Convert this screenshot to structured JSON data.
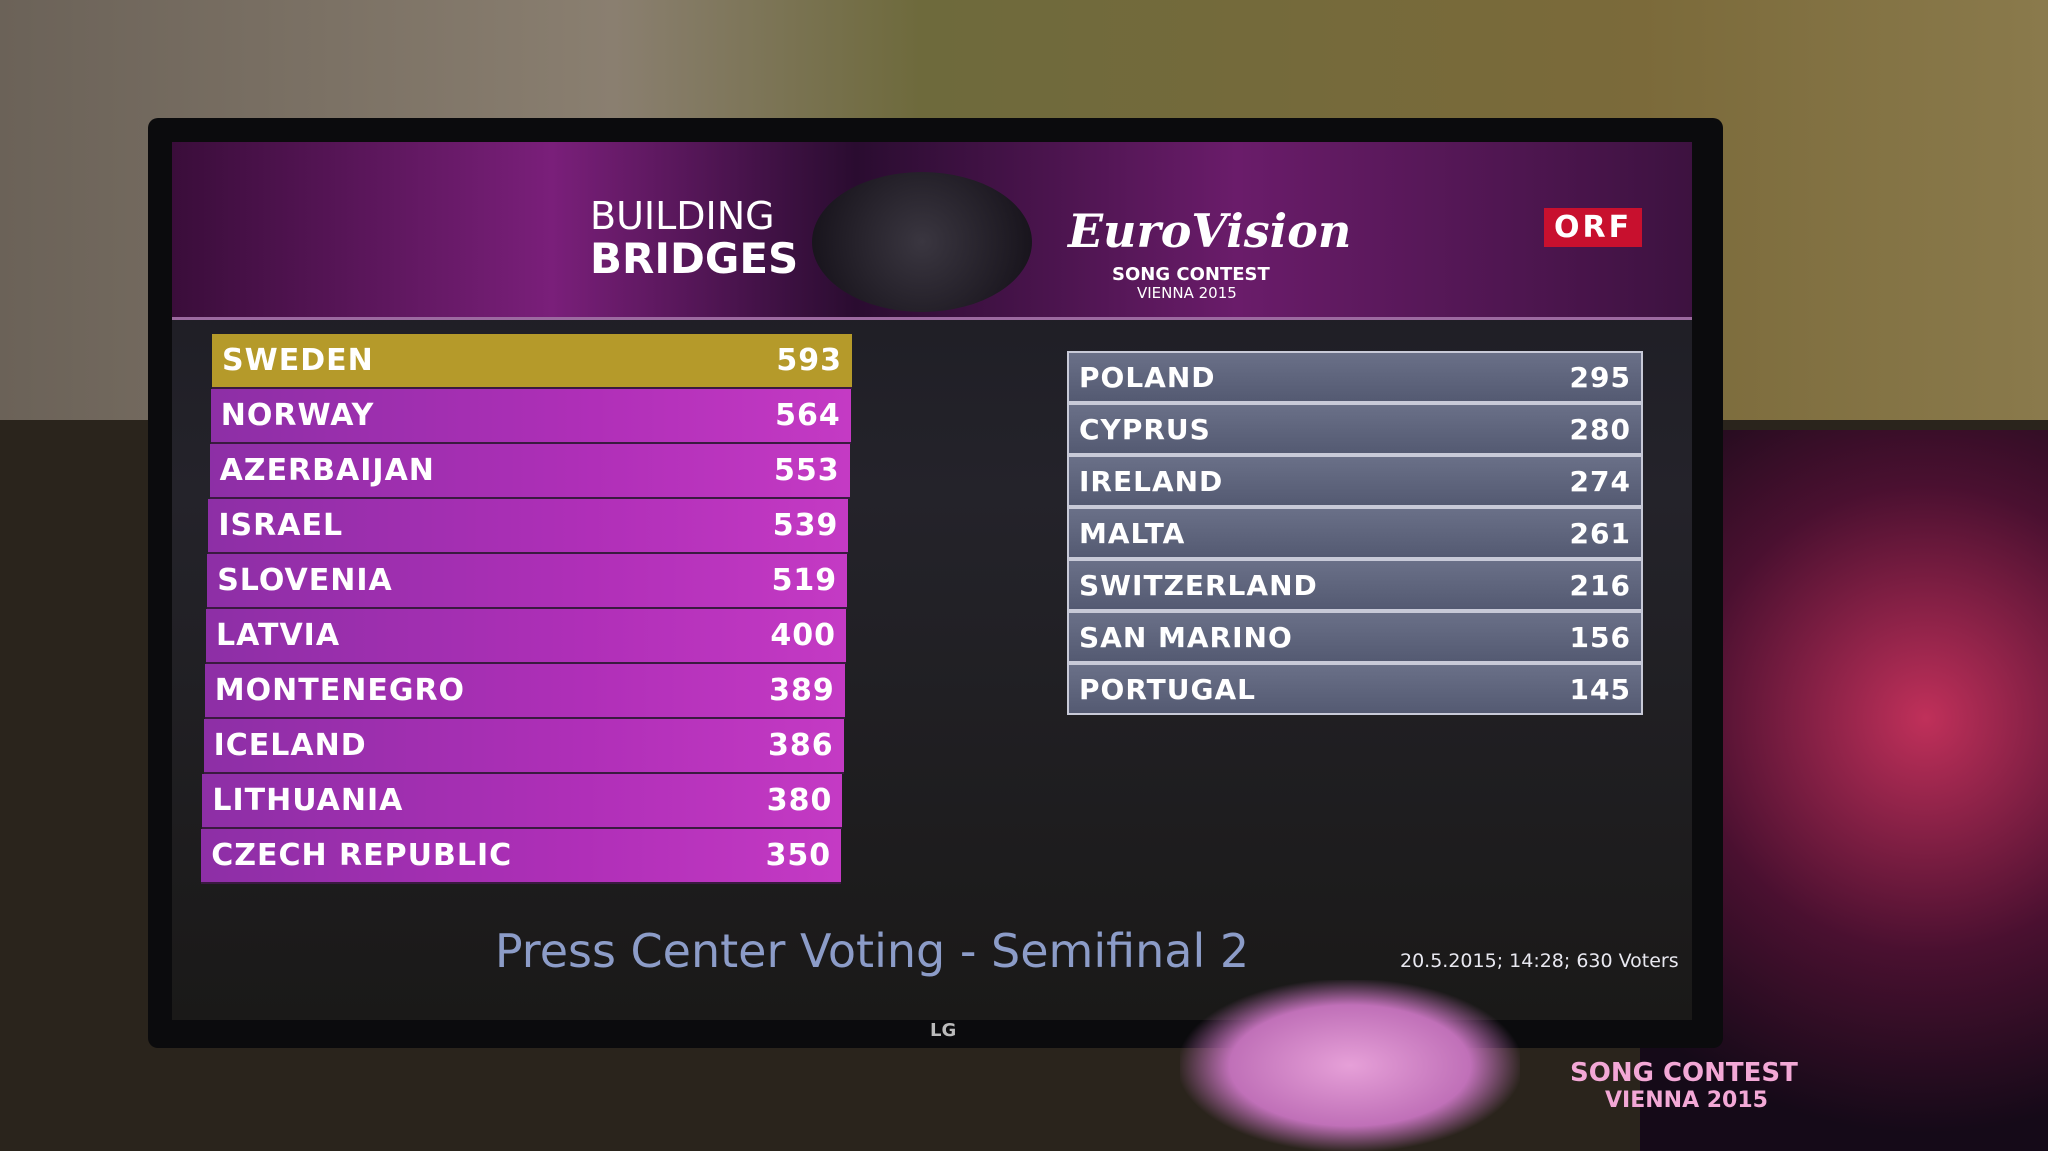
{
  "header": {
    "line1": "BUILDING",
    "line2": "BRIDGES",
    "logo": "EuroVision",
    "logo_sub1": "SONG CONTEST",
    "logo_sub2": "VIENNA 2015",
    "broadcaster": "ORF"
  },
  "left_table": {
    "rows": [
      [
        "SWEDEN",
        593
      ],
      [
        "NORWAY",
        564
      ],
      [
        "AZERBAIJAN",
        553
      ],
      [
        "ISRAEL",
        539
      ],
      [
        "SLOVENIA",
        519
      ],
      [
        "LATVIA",
        400
      ],
      [
        "MONTENEGRO",
        389
      ],
      [
        "ICELAND",
        386
      ],
      [
        "LITHUANIA",
        380
      ],
      [
        "CZECH REPUBLIC",
        350
      ]
    ]
  },
  "right_table": {
    "rows": [
      [
        "POLAND",
        295
      ],
      [
        "CYPRUS",
        280
      ],
      [
        "IRELAND",
        274
      ],
      [
        "MALTA",
        261
      ],
      [
        "SWITZERLAND",
        216
      ],
      [
        "SAN MARINO",
        156
      ],
      [
        "PORTUGAL",
        145
      ]
    ]
  },
  "footer": {
    "title": "Press Center Voting - Semifinal 2",
    "info": "20.5.2015; 14:28; 630 Voters"
  },
  "tv_brand": "LG",
  "poster": {
    "sub1": "SONG CONTEST",
    "sub2": "VIENNA 2015"
  }
}
